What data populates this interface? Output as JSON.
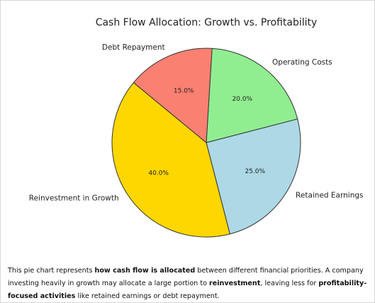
{
  "chart_data": {
    "type": "pie",
    "title": "Cash Flow Allocation: Growth vs. Profitability",
    "categories": [
      "Operating Costs",
      "Retained Earnings",
      "Reinvestment in Growth",
      "Debt Repayment"
    ],
    "values": [
      20,
      25,
      40,
      15
    ],
    "value_labels": [
      "20.0%",
      "25.0%",
      "40.0%",
      "15.0%"
    ],
    "colors": [
      "#90ee90",
      "#add8e6",
      "#ffd700",
      "#fa8072"
    ]
  },
  "caption": [
    {
      "text": "This pie chart represents ",
      "bold": false
    },
    {
      "text": "how cash flow is allocated",
      "bold": true
    },
    {
      "text": " between different financial priorities. A company investing heavily in growth may allocate a large portion to ",
      "bold": false
    },
    {
      "text": "reinvestment",
      "bold": true
    },
    {
      "text": ", leaving less for ",
      "bold": false
    },
    {
      "text": "profitability-focused activities",
      "bold": true
    },
    {
      "text": " like retained earnings or debt repayment.",
      "bold": false
    }
  ]
}
